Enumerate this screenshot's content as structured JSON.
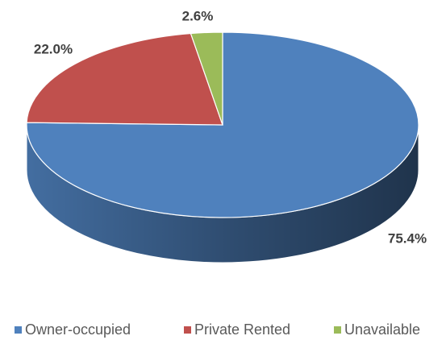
{
  "chart_data": {
    "type": "pie",
    "categories": [
      "Owner-occupied",
      "Private Rented",
      "Unavailable"
    ],
    "values": [
      75.4,
      22.0,
      2.6
    ],
    "value_labels": [
      "75.4%",
      "22.0%",
      "2.6%"
    ],
    "colors": [
      "#4f81bd",
      "#c0504d",
      "#9bbb59"
    ],
    "legend": "bottom"
  }
}
